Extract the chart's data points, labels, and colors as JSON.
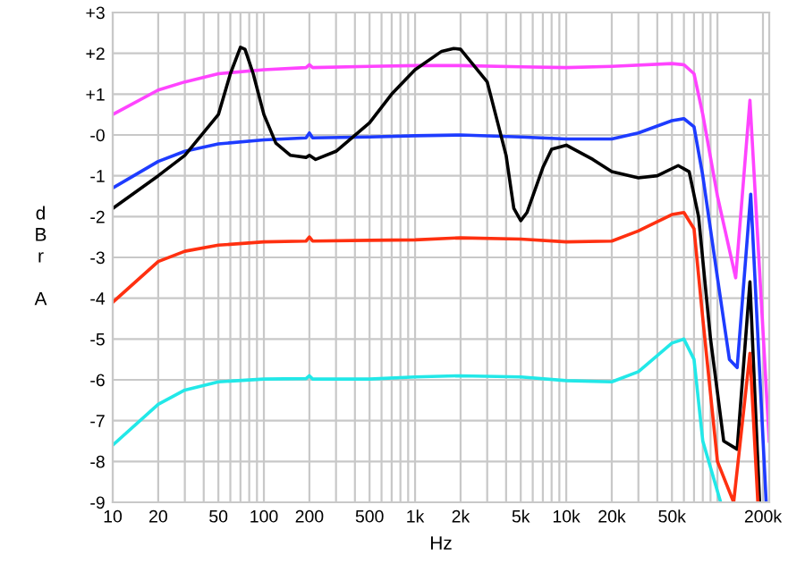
{
  "chart_data": {
    "type": "line",
    "xlabel": "Hz",
    "ylabel": "dBr A",
    "log": "x",
    "grid": true,
    "legend": false,
    "marker": "none",
    "line_style": "solid",
    "xlim": [
      10,
      220000
    ],
    "ylim": [
      -9,
      3
    ],
    "xticks": [
      10,
      20,
      {
        "value": 30,
        "label": null
      },
      {
        "value": 40,
        "label": null
      },
      50,
      {
        "value": 60,
        "label": null
      },
      {
        "value": 70,
        "label": null
      },
      {
        "value": 80,
        "label": null
      },
      {
        "value": 90,
        "label": null
      },
      100,
      200,
      {
        "value": 300,
        "label": null
      },
      {
        "value": 400,
        "label": null
      },
      500,
      {
        "value": 600,
        "label": null
      },
      {
        "value": 700,
        "label": null
      },
      {
        "value": 800,
        "label": null
      },
      {
        "value": 900,
        "label": null
      },
      {
        "value": 1000,
        "label": "1k"
      },
      {
        "value": 2000,
        "label": "2k"
      },
      {
        "value": 3000,
        "label": null
      },
      {
        "value": 4000,
        "label": null
      },
      {
        "value": 5000,
        "label": "5k"
      },
      {
        "value": 6000,
        "label": null
      },
      {
        "value": 7000,
        "label": null
      },
      {
        "value": 8000,
        "label": null
      },
      {
        "value": 9000,
        "label": null
      },
      {
        "value": 10000,
        "label": "10k"
      },
      {
        "value": 20000,
        "label": "20k"
      },
      {
        "value": 30000,
        "label": null
      },
      {
        "value": 40000,
        "label": null
      },
      {
        "value": 50000,
        "label": "50k"
      },
      {
        "value": 60000,
        "label": null
      },
      {
        "value": 70000,
        "label": null
      },
      {
        "value": 80000,
        "label": null
      },
      {
        "value": 90000,
        "label": null
      },
      {
        "value": 100000,
        "label": null
      },
      {
        "value": 200000,
        "label": "200k"
      }
    ],
    "yticks": [
      {
        "value": 3,
        "label": "+3"
      },
      {
        "value": 2,
        "label": "+2"
      },
      {
        "value": 1,
        "label": "+1"
      },
      {
        "value": 0,
        "label": "-0"
      },
      -1,
      -2,
      -3,
      -4,
      -5,
      -6,
      -7,
      -8,
      -9
    ],
    "series": [
      {
        "color": "#ff44ff",
        "x": [
          10,
          20,
          30,
          50,
          100,
          190,
          200,
          210,
          500,
          1000,
          2000,
          5000,
          10000,
          20000,
          50000,
          60000,
          70000,
          80000,
          100000,
          132000,
          164000,
          220000
        ],
        "values": [
          0.5,
          1.1,
          1.3,
          1.5,
          1.6,
          1.65,
          1.72,
          1.65,
          1.68,
          1.7,
          1.7,
          1.67,
          1.65,
          1.68,
          1.75,
          1.72,
          1.5,
          0.5,
          -1.5,
          -3.5,
          0.85,
          -7.5
        ]
      },
      {
        "color": "#1e3cff",
        "x": [
          10,
          20,
          30,
          50,
          100,
          190,
          200,
          210,
          500,
          1000,
          2000,
          5000,
          10000,
          20000,
          30000,
          50000,
          60000,
          70000,
          80000,
          100000,
          120000,
          135000,
          166000,
          210000
        ],
        "values": [
          -1.3,
          -0.65,
          -0.4,
          -0.22,
          -0.12,
          -0.07,
          0.05,
          -0.07,
          -0.05,
          -0.02,
          0,
          -0.05,
          -0.1,
          -0.1,
          0.05,
          0.35,
          0.4,
          0.2,
          -1,
          -3.5,
          -5.5,
          -5.7,
          -1.45,
          -9
        ]
      },
      {
        "color": "#000000",
        "x": [
          10,
          20,
          30,
          50,
          60,
          70,
          75,
          85,
          100,
          120,
          150,
          190,
          200,
          220,
          300,
          500,
          700,
          1000,
          1500,
          1800,
          2000,
          3000,
          4000,
          4500,
          5000,
          5500,
          7000,
          8000,
          10000,
          15000,
          20000,
          30000,
          40000,
          55000,
          65000,
          75000,
          90000,
          110000,
          135000,
          164000,
          190000
        ],
        "values": [
          -1.8,
          -1.0,
          -0.5,
          0.5,
          1.5,
          2.15,
          2.1,
          1.5,
          0.5,
          -0.2,
          -0.5,
          -0.55,
          -0.5,
          -0.6,
          -0.4,
          0.3,
          1.0,
          1.6,
          2.05,
          2.12,
          2.1,
          1.3,
          -0.5,
          -1.8,
          -2.1,
          -1.9,
          -0.8,
          -0.35,
          -0.25,
          -0.6,
          -0.9,
          -1.05,
          -1.0,
          -0.75,
          -0.9,
          -2,
          -5,
          -7.5,
          -7.7,
          -3.6,
          -9
        ]
      },
      {
        "color": "#ff3010",
        "x": [
          10,
          20,
          30,
          50,
          100,
          190,
          200,
          210,
          500,
          1000,
          2000,
          5000,
          10000,
          20000,
          30000,
          50000,
          60000,
          70000,
          80000,
          100000,
          128000,
          164000,
          185000
        ],
        "values": [
          -4.1,
          -3.1,
          -2.85,
          -2.7,
          -2.62,
          -2.6,
          -2.5,
          -2.6,
          -2.58,
          -2.57,
          -2.52,
          -2.55,
          -2.62,
          -2.6,
          -2.35,
          -1.95,
          -1.9,
          -2.3,
          -4.5,
          -8,
          -9,
          -5.35,
          -9
        ]
      },
      {
        "color": "#22e8e8",
        "x": [
          10,
          20,
          30,
          50,
          100,
          190,
          200,
          210,
          500,
          1000,
          2000,
          5000,
          10000,
          20000,
          30000,
          50000,
          60000,
          70000,
          80000,
          105000
        ],
        "values": [
          -7.6,
          -6.6,
          -6.25,
          -6.05,
          -5.98,
          -5.97,
          -5.9,
          -5.98,
          -5.98,
          -5.93,
          -5.9,
          -5.93,
          -6.02,
          -6.05,
          -5.8,
          -5.1,
          -5.0,
          -5.5,
          -7.5,
          -9.0
        ]
      }
    ]
  }
}
